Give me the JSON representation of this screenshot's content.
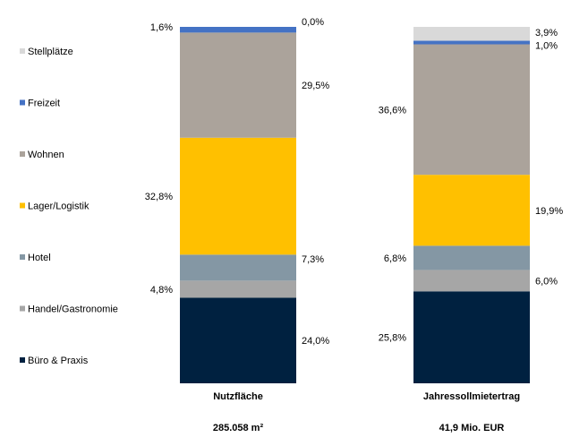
{
  "chart_data": {
    "type": "bar",
    "stacked": true,
    "normalized_percent": true,
    "categories": [
      "Nutzfläche",
      "Jahressollmietertrag"
    ],
    "category_totals": [
      "285.058 m²",
      "41,9 Mio. EUR"
    ],
    "legend_position": "left",
    "grid": false,
    "ylim": [
      0,
      100
    ],
    "series": [
      {
        "name": "Büro & Praxis",
        "color": "#002140",
        "values": [
          24.0,
          25.8
        ],
        "labels": [
          "24,0%",
          "25,8%"
        ]
      },
      {
        "name": "Handel/Gastronomie",
        "color": "#a6a6a6",
        "values": [
          4.8,
          6.0
        ],
        "labels": [
          "4,8%",
          "6,0%"
        ]
      },
      {
        "name": "Hotel",
        "color": "#8497a4",
        "values": [
          7.3,
          6.8
        ],
        "labels": [
          "7,3%",
          "6,8%"
        ]
      },
      {
        "name": "Lager/Logistik",
        "color": "#ffc000",
        "values": [
          32.8,
          19.9
        ],
        "labels": [
          "32,8%",
          "19,9%"
        ]
      },
      {
        "name": "Wohnen",
        "color": "#aba39b",
        "values": [
          29.5,
          36.6
        ],
        "labels": [
          "29,5%",
          "36,6%"
        ]
      },
      {
        "name": "Freizeit",
        "color": "#4472c4",
        "values": [
          1.6,
          1.0
        ],
        "labels": [
          "1,6%",
          "1,0%"
        ]
      },
      {
        "name": "Stellplätze",
        "color": "#d9d9d9",
        "values": [
          0.0,
          3.9
        ],
        "labels": [
          "0,0%",
          "3,9%"
        ]
      }
    ]
  }
}
